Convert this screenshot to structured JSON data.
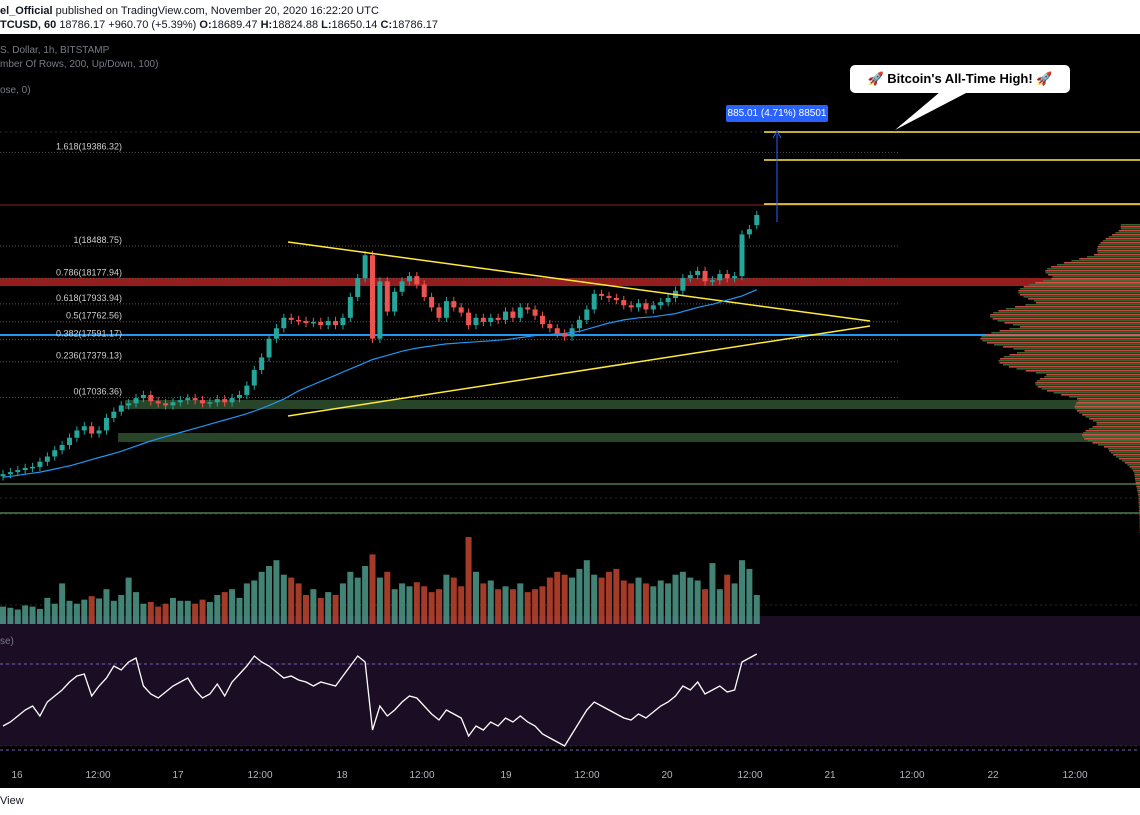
{
  "header": {
    "author": "el_Official",
    "published": "published on TradingView.com, November 20, 2020 16:22:20 UTC",
    "symbol": "TCUSD, 60",
    "last": "18786.17",
    "change": "+960.70 (+5.39%)",
    "ohlc": [
      {
        "label": "O:",
        "value": "18689.47"
      },
      {
        "label": "H:",
        "value": "18824.88"
      },
      {
        "label": "L:",
        "value": "18650.14"
      },
      {
        "label": "C:",
        "value": "18786.17"
      }
    ]
  },
  "indicators": {
    "main": "S. Dollar, 1h, BITSTAMP",
    "vpvr": "mber Of Rows, 200, Up/Down, 100)",
    "ma": "ose, 0)",
    "rsi": "se)"
  },
  "callout": {
    "text": "🚀 Bitcoin's All-Time High! 🚀"
  },
  "measure": {
    "text": "885.01 (4.71%) 88501"
  },
  "footer": {
    "brand": "View"
  },
  "colors": {
    "up": "#26a69a",
    "down": "#ef5350",
    "fib": "#ffeb3b",
    "ma": "#2196f3",
    "rsi_bg": "#1a0d24"
  },
  "chart_data": {
    "type": "candlestick",
    "symbol": "BTCUSD",
    "exchange": "BITSTAMP",
    "interval": "1h",
    "fib_levels": [
      {
        "label": "1.618(19386.32)",
        "price": 19386.32
      },
      {
        "label": "1(18488.75)",
        "price": 18488.75
      },
      {
        "label": "0.786(18177.94)",
        "price": 18177.94
      },
      {
        "label": "0.618(17933.94)",
        "price": 17933.94
      },
      {
        "label": "0.5(17762.56)",
        "price": 17762.56
      },
      {
        "label": "0.382(17591.17)",
        "price": 17591.17
      },
      {
        "label": "0.236(17379.13)",
        "price": 17379.13
      },
      {
        "label": "0(17036.36)",
        "price": 17036.36
      }
    ],
    "x_ticks": [
      "16",
      "12:00",
      "17",
      "12:00",
      "18",
      "12:00",
      "19",
      "12:00",
      "20",
      "12:00",
      "21",
      "12:00",
      "22",
      "12:00"
    ],
    "close": [
      16300,
      16320,
      16340,
      16360,
      16370,
      16420,
      16470,
      16530,
      16580,
      16650,
      16720,
      16760,
      16690,
      16720,
      16840,
      16900,
      16960,
      16980,
      17030,
      17060,
      17000,
      16980,
      16960,
      16990,
      17010,
      17030,
      17010,
      16980,
      16990,
      17020,
      16990,
      17030,
      17060,
      17150,
      17300,
      17420,
      17600,
      17700,
      17800,
      17780,
      17770,
      17750,
      17760,
      17730,
      17770,
      17730,
      17800,
      18000,
      18180,
      18400,
      17600,
      18150,
      17860,
      18050,
      18150,
      18200,
      18120,
      18000,
      17900,
      17800,
      17960,
      17900,
      17850,
      17730,
      17800,
      17760,
      17800,
      17780,
      17860,
      17800,
      17900,
      17880,
      17820,
      17740,
      17700,
      17650,
      17620,
      17700,
      17780,
      17880,
      18030,
      18010,
      17990,
      17970,
      17920,
      17900,
      17940,
      17880,
      17920,
      17950,
      17990,
      18060,
      18180,
      18210,
      18250,
      18150,
      18160,
      18220,
      18180,
      18200,
      18600,
      18650,
      18786
    ],
    "open": [
      16280,
      16300,
      16320,
      16340,
      16360,
      16370,
      16420,
      16470,
      16530,
      16580,
      16650,
      16720,
      16760,
      16690,
      16720,
      16840,
      16900,
      16960,
      16980,
      17030,
      17060,
      17000,
      16980,
      16960,
      16990,
      17010,
      17030,
      17010,
      16980,
      16990,
      17020,
      16990,
      17030,
      17060,
      17150,
      17300,
      17420,
      17600,
      17700,
      17800,
      17780,
      17770,
      17750,
      17760,
      17730,
      17770,
      17730,
      17800,
      18000,
      18180,
      18400,
      17600,
      18150,
      17860,
      18050,
      18150,
      18200,
      18120,
      18000,
      17900,
      17800,
      17960,
      17900,
      17850,
      17730,
      17800,
      17760,
      17800,
      17780,
      17860,
      17800,
      17900,
      17880,
      17820,
      17740,
      17700,
      17650,
      17620,
      17700,
      17780,
      17880,
      18030,
      18010,
      17990,
      17970,
      17920,
      17900,
      17940,
      17880,
      17920,
      17950,
      17990,
      18060,
      18180,
      18210,
      18250,
      18150,
      18160,
      18220,
      18180,
      18200,
      18600,
      18689.47
    ],
    "volume": [
      30,
      28,
      25,
      32,
      30,
      26,
      45,
      35,
      70,
      40,
      35,
      42,
      48,
      44,
      60,
      40,
      50,
      80,
      55,
      35,
      38,
      30,
      35,
      45,
      40,
      40,
      35,
      42,
      38,
      50,
      55,
      60,
      45,
      70,
      75,
      90,
      100,
      110,
      85,
      80,
      70,
      50,
      60,
      45,
      55,
      50,
      70,
      90,
      80,
      100,
      120,
      80,
      90,
      60,
      70,
      65,
      72,
      65,
      55,
      60,
      85,
      80,
      65,
      150,
      90,
      70,
      75,
      60,
      65,
      60,
      70,
      55,
      60,
      65,
      80,
      90,
      85,
      80,
      95,
      110,
      85,
      80,
      90,
      95,
      75,
      70,
      80,
      70,
      65,
      75,
      70,
      85,
      90,
      80,
      75,
      60,
      105,
      60,
      85,
      70,
      110,
      95,
      50
    ],
    "ma": [
      16270,
      16280,
      16290,
      16300,
      16310,
      16320,
      16335,
      16350,
      16365,
      16380,
      16400,
      16420,
      16440,
      16460,
      16480,
      16500,
      16520,
      16545,
      16570,
      16595,
      16620,
      16640,
      16660,
      16680,
      16700,
      16720,
      16740,
      16760,
      16780,
      16800,
      16820,
      16840,
      16860,
      16880,
      16905,
      16930,
      16960,
      16990,
      17020,
      17060,
      17100,
      17130,
      17160,
      17190,
      17220,
      17250,
      17280,
      17310,
      17340,
      17370,
      17400,
      17420,
      17440,
      17460,
      17480,
      17495,
      17510,
      17520,
      17530,
      17540,
      17550,
      17555,
      17560,
      17565,
      17570,
      17575,
      17580,
      17585,
      17590,
      17600,
      17610,
      17620,
      17630,
      17635,
      17640,
      17645,
      17650,
      17660,
      17670,
      17690,
      17710,
      17730,
      17750,
      17765,
      17780,
      17790,
      17800,
      17805,
      17810,
      17820,
      17830,
      17840,
      17860,
      17880,
      17900,
      17915,
      17930,
      17950,
      17970,
      17990,
      18010,
      18040,
      18070
    ],
    "rsi": [
      40,
      42,
      45,
      48,
      50,
      45,
      52,
      55,
      58,
      62,
      65,
      66,
      55,
      60,
      64,
      70,
      68,
      72,
      74,
      60,
      56,
      54,
      57,
      60,
      62,
      64,
      58,
      54,
      56,
      61,
      55,
      62,
      66,
      70,
      75,
      72,
      70,
      67,
      64,
      65,
      63,
      62,
      60,
      62,
      61,
      60,
      65,
      70,
      75,
      72,
      38,
      50,
      45,
      48,
      52,
      55,
      54,
      50,
      46,
      43,
      48,
      46,
      44,
      35,
      40,
      38,
      42,
      40,
      44,
      42,
      45,
      42,
      40,
      36,
      34,
      32,
      30,
      36,
      42,
      48,
      52,
      50,
      48,
      46,
      44,
      43,
      46,
      44,
      47,
      50,
      52,
      55,
      60,
      58,
      62,
      56,
      58,
      60,
      57,
      58,
      72,
      74,
      76
    ]
  }
}
